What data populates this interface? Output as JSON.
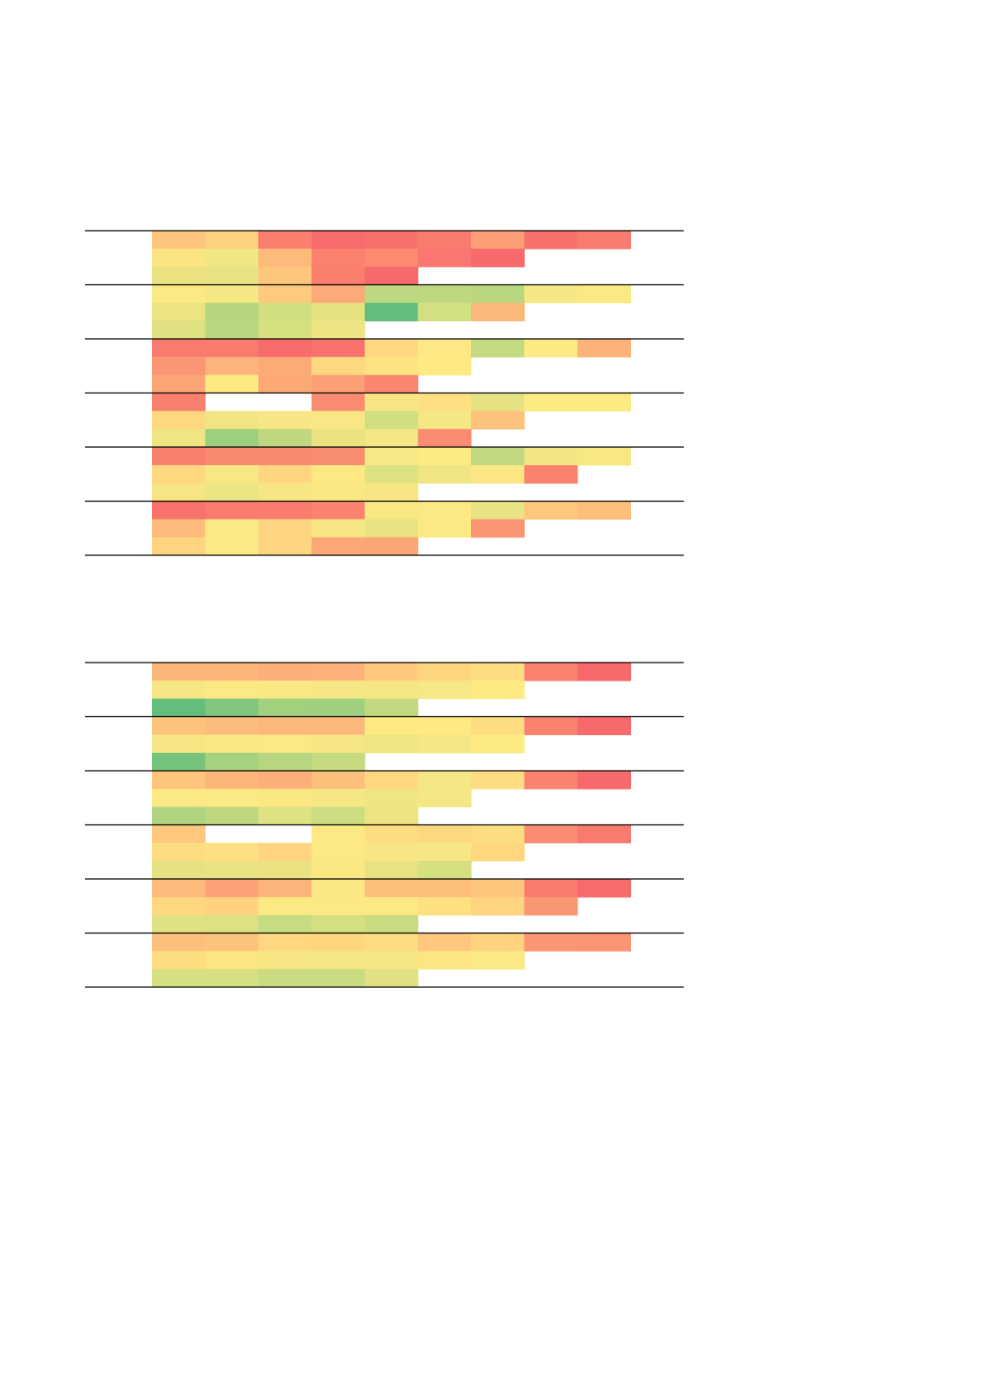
{
  "tables": [
    {
      "groups": [
        [
          [
            "#fec57f",
            "#fdd280",
            "#fb7f6e",
            "#f86b6b",
            "#f8706b",
            "#f97a6e",
            "#fb9e75",
            "#f8706b",
            "#f97a6e"
          ],
          [
            "#fbe583",
            "#f0e784",
            "#fdbb7b",
            "#fa826f",
            "#fb8a71",
            "#f97770",
            "#f8696b"
          ],
          [
            "#ebe382",
            "#e8e283",
            "#fec67c",
            "#fa7f6e",
            "#f8696b"
          ]
        ],
        [
          [
            "#fbe983",
            "#f5e784",
            "#fecb7e",
            "#fcaa77",
            "#bcd880",
            "#bed880",
            "#b8d77f",
            "#f5e784",
            "#fbe983"
          ],
          [
            "#ece382",
            "#b6d67e",
            "#d1df81",
            "#e5e282",
            "#63be7b",
            "#d3e081",
            "#fcb77a"
          ],
          [
            "#dfe182",
            "#b9d77f",
            "#d6e081",
            "#ede483"
          ]
        ],
        [
          [
            "#f97a6e",
            "#f97b6e",
            "#f86b6b",
            "#f8716c",
            "#fed780",
            "#fee883",
            "#c4da80",
            "#feea83",
            "#fdb27a"
          ],
          [
            "#fa9673",
            "#fcb47a",
            "#fcab77",
            "#fed880",
            "#fde382",
            "#fee983"
          ],
          [
            "#fba576",
            "#fee983",
            "#fca976",
            "#fb9f74",
            "#fa8670"
          ]
        ],
        [
          [
            "#f8806e",
            null,
            null,
            "#fa8d71",
            "#f6e784",
            "#fee082",
            "#e6e283",
            "#fcea83",
            "#fcea83"
          ],
          [
            "#fed880",
            "#f1e583",
            "#f7e784",
            "#f8e784",
            "#d1df81",
            "#f4e784",
            "#fdc37d"
          ],
          [
            "#f0e583",
            "#9ccf7e",
            "#bfd880",
            "#ebe382",
            "#f4e784",
            "#fa8b71"
          ]
        ],
        [
          [
            "#f8806f",
            "#f98971",
            "#f98a72",
            "#f98d71",
            "#f6e884",
            "#fcea83",
            "#c0d880",
            "#f2e683",
            "#f8e884"
          ],
          [
            "#fed880",
            "#f8e884",
            "#fed580",
            "#fde983",
            "#dde182",
            "#f0e583",
            "#fbe683",
            "#fa8370"
          ],
          [
            "#f7e584",
            "#ebe583",
            "#f6e784",
            "#fbe883",
            "#f7e584"
          ]
        ],
        [
          [
            "#f8726c",
            "#f97b6e",
            "#f97d6f",
            "#fa826f",
            "#f8e884",
            "#fde983",
            "#e9e483",
            "#fec77d",
            "#fdc07c"
          ],
          [
            "#fdbb7b",
            "#fde983",
            "#fed480",
            "#f7e784",
            "#e8e283",
            "#fde983",
            "#fa9673"
          ],
          [
            "#fed480",
            "#fbe983",
            "#fed480",
            "#fba776",
            "#fba675"
          ]
        ]
      ]
    },
    {
      "groups": [
        [
          [
            "#fcb67a",
            "#fcb67a",
            "#fcaf78",
            "#fcb27a",
            "#fec87d",
            "#fed57f",
            "#fedd81",
            "#fa8370",
            "#f8696b"
          ],
          [
            "#f6e784",
            "#fbe983",
            "#f9e884",
            "#f6e784",
            "#f3e683",
            "#f6e884",
            "#feea83"
          ],
          [
            "#63be7b",
            "#82c77d",
            "#a1d07f",
            "#9fd07f",
            "#c0d980"
          ]
        ],
        [
          [
            "#fdc37d",
            "#fcbc7b",
            "#fcb87a",
            "#fcb87a",
            "#fee983",
            "#fee983",
            "#fedd81",
            "#fa8370",
            "#f8696b"
          ],
          [
            "#f6e784",
            "#f9e884",
            "#fde983",
            "#f6e784",
            "#f0e583",
            "#f4e784",
            "#feea83"
          ],
          [
            "#76c37c",
            "#a6d17f",
            "#b8d67f",
            "#c6da80"
          ]
        ],
        [
          [
            "#fec47c",
            "#fcb67a",
            "#fcaf78",
            "#fdbf7c",
            "#fed780",
            "#f4e784",
            "#fedc81",
            "#fa8370",
            "#f8696b"
          ],
          [
            "#fde983",
            "#fde983",
            "#fbe883",
            "#f6e784",
            "#f0e583",
            "#f4e784"
          ],
          [
            "#b0d47f",
            "#bfd880",
            "#dee282",
            "#cbdc81",
            "#ece382"
          ]
        ],
        [
          [
            "#fdc87d",
            null,
            null,
            "#fde983",
            "#fedd81",
            "#fed880",
            "#fedd81",
            "#fa8d71",
            "#f97a6e"
          ],
          [
            "#fedd82",
            "#fee082",
            "#fed480",
            "#fde983",
            "#f6e784",
            "#f6e784",
            "#fed780"
          ],
          [
            "#e6e283",
            "#e9e383",
            "#ebe382",
            "#fae883",
            "#e8e283",
            "#d6e081"
          ]
        ],
        [
          [
            "#fdbb7b",
            "#fba276",
            "#fcb47a",
            "#f9e884",
            "#fdbd7b",
            "#fdbd7b",
            "#fec67c",
            "#f97a6e",
            "#f86b6b"
          ],
          [
            "#fed780",
            "#fed280",
            "#fde983",
            "#fde983",
            "#fde983",
            "#fee081",
            "#fed480",
            "#fa9773"
          ],
          [
            "#dfe182",
            "#dde182",
            "#c7dc81",
            "#d4df81",
            "#c9dc81"
          ]
        ],
        [
          [
            "#fdc07c",
            "#fdc37d",
            "#fed780",
            "#fed680",
            "#fedd81",
            "#fec77d",
            "#fed37f",
            "#fa9673",
            "#fa9473"
          ],
          [
            "#fedd81",
            "#fde582",
            "#f6e784",
            "#f5e784",
            "#f3e683",
            "#fde582",
            "#fbe983"
          ],
          [
            "#d6df81",
            "#d6df81",
            "#c9dc81",
            "#c9dc81",
            "#e1e183"
          ]
        ]
      ]
    }
  ]
}
